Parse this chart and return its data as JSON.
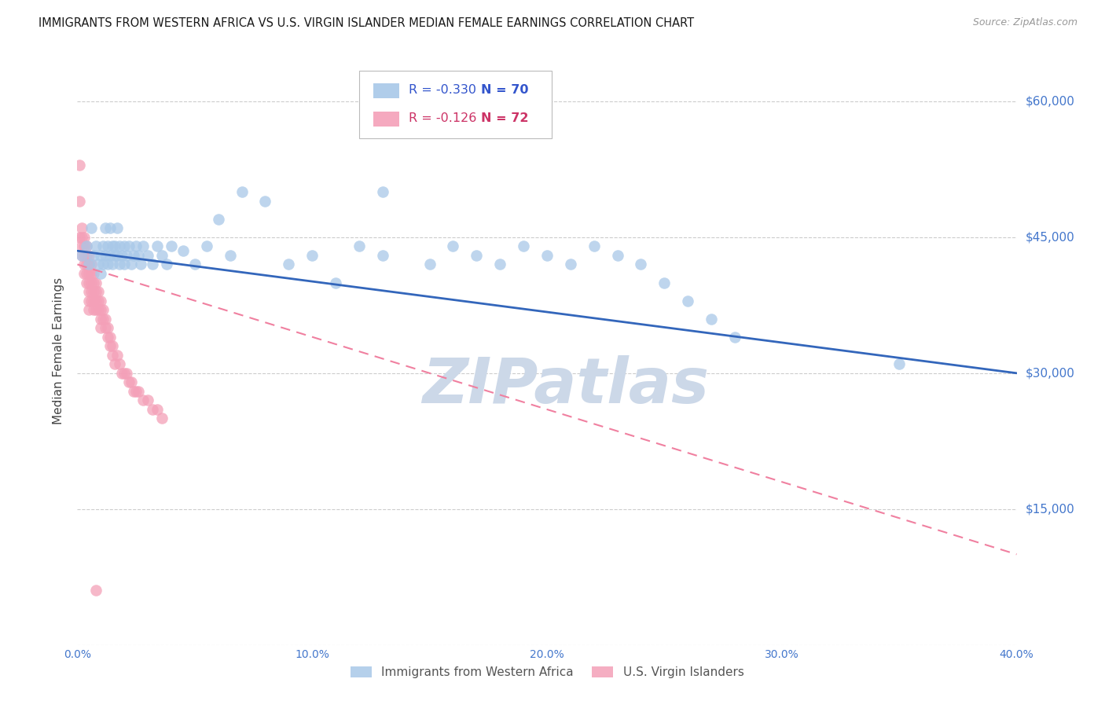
{
  "title": "IMMIGRANTS FROM WESTERN AFRICA VS U.S. VIRGIN ISLANDER MEDIAN FEMALE EARNINGS CORRELATION CHART",
  "source": "Source: ZipAtlas.com",
  "ylabel": "Median Female Earnings",
  "watermark": "ZIPatlas",
  "xlim": [
    0.0,
    0.4
  ],
  "ylim": [
    0,
    65000
  ],
  "yticks": [
    0,
    15000,
    30000,
    45000,
    60000
  ],
  "ytick_labels": [
    "",
    "$15,000",
    "$30,000",
    "$45,000",
    "$60,000"
  ],
  "xtick_labels": [
    "0.0%",
    "",
    "10.0%",
    "",
    "20.0%",
    "",
    "30.0%",
    "",
    "40.0%"
  ],
  "xticks": [
    0.0,
    0.05,
    0.1,
    0.15,
    0.2,
    0.25,
    0.3,
    0.35,
    0.4
  ],
  "legend_entries": [
    {
      "label": "Immigrants from Western Africa",
      "R": "-0.330",
      "N": "70",
      "color": "#a8c8e8"
    },
    {
      "label": "U.S. Virgin Islanders",
      "R": "-0.126",
      "N": "72",
      "color": "#f4a0b8"
    }
  ],
  "scatter_blue": {
    "x": [
      0.002,
      0.004,
      0.005,
      0.006,
      0.007,
      0.008,
      0.009,
      0.01,
      0.01,
      0.011,
      0.011,
      0.012,
      0.012,
      0.013,
      0.013,
      0.014,
      0.014,
      0.015,
      0.015,
      0.016,
      0.016,
      0.017,
      0.017,
      0.018,
      0.018,
      0.019,
      0.02,
      0.02,
      0.021,
      0.022,
      0.023,
      0.024,
      0.025,
      0.026,
      0.027,
      0.028,
      0.03,
      0.032,
      0.034,
      0.036,
      0.038,
      0.04,
      0.045,
      0.05,
      0.055,
      0.06,
      0.065,
      0.07,
      0.08,
      0.09,
      0.1,
      0.11,
      0.12,
      0.13,
      0.15,
      0.16,
      0.17,
      0.18,
      0.19,
      0.2,
      0.21,
      0.22,
      0.23,
      0.24,
      0.25,
      0.26,
      0.27,
      0.28,
      0.35,
      0.13
    ],
    "y": [
      43000,
      44000,
      42000,
      46000,
      43000,
      44000,
      42000,
      41000,
      43000,
      44000,
      42000,
      46000,
      43000,
      44000,
      42000,
      46000,
      43000,
      44000,
      42000,
      43000,
      44000,
      46000,
      43000,
      42000,
      44000,
      43000,
      44000,
      42000,
      43000,
      44000,
      42000,
      43000,
      44000,
      43000,
      42000,
      44000,
      43000,
      42000,
      44000,
      43000,
      42000,
      44000,
      43500,
      42000,
      44000,
      47000,
      43000,
      50000,
      49000,
      42000,
      43000,
      40000,
      44000,
      43000,
      42000,
      44000,
      43000,
      42000,
      44000,
      43000,
      42000,
      44000,
      43000,
      42000,
      40000,
      38000,
      36000,
      34000,
      31000,
      50000
    ]
  },
  "scatter_pink": {
    "x": [
      0.001,
      0.001,
      0.001,
      0.002,
      0.002,
      0.002,
      0.002,
      0.003,
      0.003,
      0.003,
      0.003,
      0.003,
      0.004,
      0.004,
      0.004,
      0.004,
      0.004,
      0.005,
      0.005,
      0.005,
      0.005,
      0.005,
      0.005,
      0.005,
      0.006,
      0.006,
      0.006,
      0.006,
      0.006,
      0.007,
      0.007,
      0.007,
      0.007,
      0.007,
      0.008,
      0.008,
      0.008,
      0.008,
      0.009,
      0.009,
      0.009,
      0.01,
      0.01,
      0.01,
      0.01,
      0.011,
      0.011,
      0.012,
      0.012,
      0.013,
      0.013,
      0.014,
      0.014,
      0.015,
      0.015,
      0.016,
      0.017,
      0.018,
      0.019,
      0.02,
      0.021,
      0.022,
      0.023,
      0.024,
      0.025,
      0.026,
      0.028,
      0.03,
      0.032,
      0.034,
      0.036,
      0.008
    ],
    "y": [
      53000,
      49000,
      45000,
      46000,
      45000,
      44000,
      43000,
      45000,
      44000,
      43000,
      42000,
      41000,
      44000,
      43000,
      42000,
      41000,
      40000,
      43000,
      42000,
      41000,
      40000,
      39000,
      38000,
      37000,
      42000,
      41000,
      40000,
      39000,
      38000,
      41000,
      40000,
      39000,
      38000,
      37000,
      40000,
      39000,
      38000,
      37000,
      39000,
      38000,
      37000,
      38000,
      37000,
      36000,
      35000,
      37000,
      36000,
      36000,
      35000,
      35000,
      34000,
      34000,
      33000,
      33000,
      32000,
      31000,
      32000,
      31000,
      30000,
      30000,
      30000,
      29000,
      29000,
      28000,
      28000,
      28000,
      27000,
      27000,
      26000,
      26000,
      25000,
      6000
    ]
  },
  "line_blue": {
    "x": [
      0.0,
      0.4
    ],
    "y": [
      43500,
      30000
    ]
  },
  "line_pink": {
    "x": [
      0.0,
      0.15
    ],
    "y": [
      42000,
      30000
    ]
  },
  "line_pink_ext": {
    "x": [
      0.0,
      0.4
    ],
    "y": [
      42000,
      10000
    ]
  },
  "title_color": "#1a1a1a",
  "title_fontsize": 10.5,
  "tick_label_color": "#4477cc",
  "ylabel_color": "#444444",
  "grid_color": "#cccccc",
  "watermark_color": "#ccd8e8",
  "background_color": "#ffffff"
}
